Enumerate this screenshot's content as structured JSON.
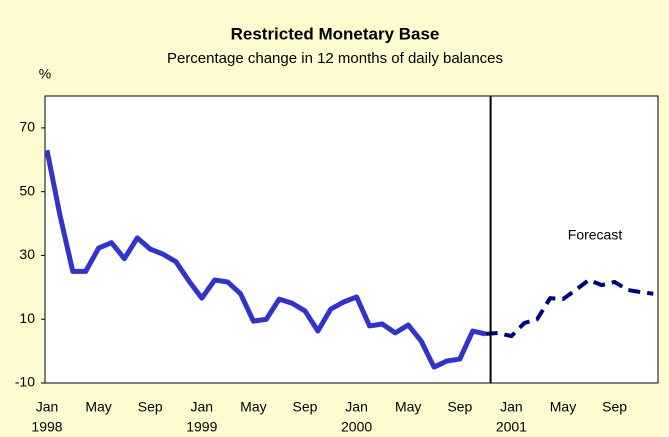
{
  "chart_data": {
    "type": "line",
    "title": "Restricted Monetary Base",
    "subtitle": "Percentage change in 12 months of daily balances",
    "y_unit": "%",
    "annotation": "Forecast",
    "categories": [
      "Jan",
      null,
      null,
      null,
      "May",
      null,
      null,
      null,
      "Sep",
      null,
      null,
      null,
      "Jan",
      null,
      null,
      null,
      "May",
      null,
      null,
      null,
      "Sep",
      null,
      null,
      null,
      "Jan",
      null,
      null,
      null,
      "May",
      null,
      null,
      null,
      "Sep",
      null,
      null,
      null,
      "Jan",
      null,
      null,
      null,
      "May",
      null,
      null,
      null,
      "Sep",
      null,
      null,
      null
    ],
    "x_years": [
      "1998",
      null,
      null,
      null,
      null,
      null,
      null,
      null,
      null,
      null,
      null,
      null,
      "1999",
      null,
      null,
      null,
      null,
      null,
      null,
      null,
      null,
      null,
      null,
      null,
      "2000",
      null,
      null,
      null,
      null,
      null,
      null,
      null,
      null,
      null,
      null,
      null,
      "2001",
      null,
      null,
      null,
      null,
      null,
      null,
      null,
      null,
      null,
      null,
      null
    ],
    "series": [
      {
        "color": "#3333cc",
        "dash": false,
        "values": [
          63,
          42.7,
          25,
          25,
          32.3,
          34,
          29,
          35.5,
          32,
          30.4,
          28,
          22,
          16.6,
          22.3,
          21.7,
          18,
          9.4,
          10,
          16.3,
          15,
          12.6,
          6.3,
          13.2,
          15.4,
          17,
          7.9,
          8.5,
          5.7,
          8.2,
          3.2,
          -5,
          -3.1,
          -2.5,
          6.3,
          5.4,
          null,
          null,
          null,
          null,
          null,
          null,
          null,
          null,
          null,
          null,
          null,
          null,
          null
        ]
      },
      {
        "color": "#000080",
        "dash": true,
        "values": [
          null,
          null,
          null,
          null,
          null,
          null,
          null,
          null,
          null,
          null,
          null,
          null,
          null,
          null,
          null,
          null,
          null,
          null,
          null,
          null,
          null,
          null,
          null,
          null,
          null,
          null,
          null,
          null,
          null,
          null,
          null,
          null,
          null,
          null,
          5.4,
          5.7,
          4.7,
          8.8,
          10,
          16.6,
          16.3,
          19.2,
          22.3,
          20.7,
          21.7,
          19.2,
          18.5,
          18
        ]
      }
    ],
    "ylim": [
      -10,
      80
    ],
    "yticks": [
      -10,
      10,
      30,
      50,
      70
    ],
    "grid": false
  }
}
